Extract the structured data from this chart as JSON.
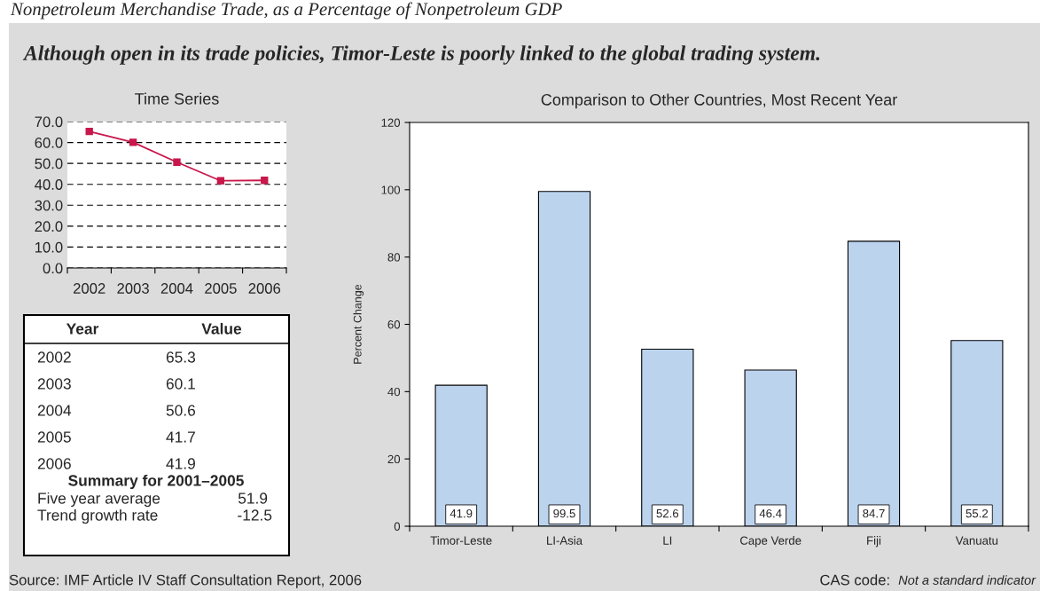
{
  "chart_data": [
    {
      "type": "line",
      "title": "Time Series",
      "categories": [
        "2002",
        "2003",
        "2004",
        "2005",
        "2006"
      ],
      "series": [
        {
          "color": "#c8174a",
          "values": [
            65.3,
            60.1,
            50.6,
            41.7,
            41.9
          ]
        }
      ],
      "ylim": [
        0,
        70
      ],
      "yticks": [
        {
          "value": 0,
          "label": "0.0"
        },
        {
          "value": 10,
          "label": "10.0"
        },
        {
          "value": 20,
          "label": "20.0"
        },
        {
          "value": 30,
          "label": "30.0"
        },
        {
          "value": 40,
          "label": "40.0"
        },
        {
          "value": 50,
          "label": "50.0"
        },
        {
          "value": 60,
          "label": "60.0"
        },
        {
          "value": 70,
          "label": "70.0"
        }
      ],
      "grid": "y",
      "marker": "square",
      "line_style": "solid",
      "annotations": [
        "Nonpetroleum Merchandise Trade, as a Percentage of Nonpetroleum GDP",
        "Although open in its trade policies, Timor-Leste is poorly linked to the global trading system.",
        "Year",
        "Value",
        "2002",
        "65.3",
        "2003",
        "60.1",
        "2004",
        "50.6",
        "2005",
        "41.7",
        "2006",
        "41.9",
        "Summary for 2001–2005",
        "Five year average",
        "51.9",
        "Trend growth rate",
        "-12.5"
      ]
    },
    {
      "type": "bar",
      "title": "Comparison to Other Countries, Most Recent Year",
      "ylabel": "Percent Change",
      "categories": [
        "Timor-Leste",
        "LI-Asia",
        "LI",
        "Cape Verde",
        "Fiji",
        "Vanuatu"
      ],
      "values": [
        41.9,
        99.5,
        52.6,
        46.4,
        84.7,
        55.2
      ],
      "color": "#bcd3ee",
      "ylim": [
        0,
        120
      ],
      "yticks": [
        0,
        20,
        40,
        60,
        80,
        100,
        120
      ],
      "grid": false,
      "data_labels": true,
      "annotations": [
        "Source: IMF Article IV Staff Consultation Report, 2006",
        "CAS code: ",
        "Not a standard indicator"
      ]
    }
  ]
}
